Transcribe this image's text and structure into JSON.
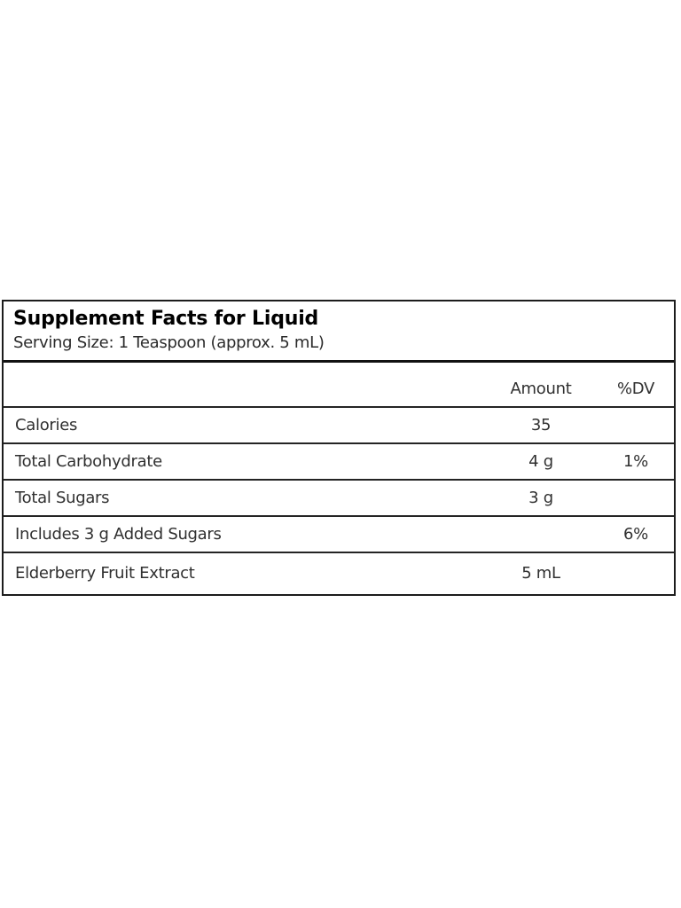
{
  "panel": {
    "title": "Supplement Facts for Liquid",
    "serving_size": "Serving Size: 1 Teaspoon (approx. 5 mL)",
    "columns": {
      "amount": "Amount",
      "dv": "%DV"
    },
    "rows": [
      {
        "label": "Calories",
        "amount": "35",
        "dv": ""
      },
      {
        "label": "Total Carbohydrate",
        "amount": "4 g",
        "dv": "1%"
      },
      {
        "label": "Total Sugars",
        "amount": "3 g",
        "dv": ""
      },
      {
        "label": "Includes 3 g Added Sugars",
        "amount": "",
        "dv": "6%"
      },
      {
        "label": "Elderberry Fruit Extract",
        "amount": "5 mL",
        "dv": ""
      }
    ],
    "colors": {
      "background": "#ffffff",
      "border": "#1c1c1c",
      "divider": "#242424",
      "title_text": "#000000",
      "body_text": "#303030"
    }
  }
}
